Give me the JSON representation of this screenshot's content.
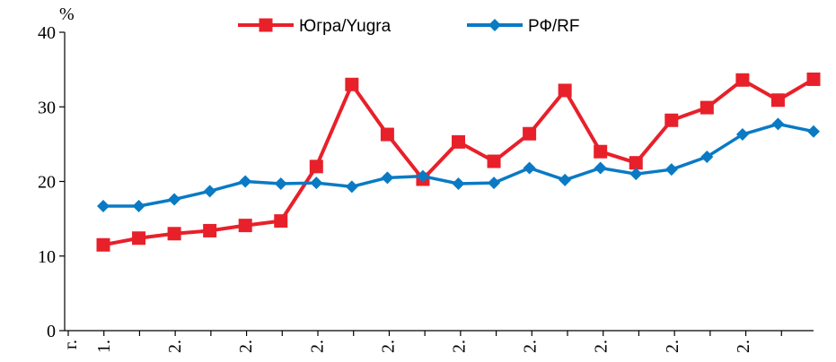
{
  "chart_data": {
    "type": "line",
    "unit_label": "%",
    "ylim": [
      0,
      40
    ],
    "y_ticks": [
      "0",
      "10",
      "20",
      "30",
      "40"
    ],
    "x_tick_labels": [
      "г.",
      "1.",
      "2.",
      "2.",
      "2.",
      "2.",
      "2.",
      "2.",
      "2.",
      "2.",
      "2."
    ],
    "grid": false,
    "legend_position": "top-center",
    "series": [
      {
        "name": "Югра/Yugra",
        "color": "#e8202a",
        "marker": "square",
        "values": [
          11.5,
          12.4,
          13.0,
          13.4,
          14.1,
          14.7,
          22.0,
          33.0,
          26.3,
          20.3,
          25.3,
          22.7,
          26.4,
          32.2,
          24.0,
          22.5,
          28.2,
          29.9,
          33.6,
          30.9,
          33.7
        ]
      },
      {
        "name": "РФ/RF",
        "color": "#0a7ac4",
        "marker": "diamond",
        "values": [
          16.7,
          16.7,
          17.6,
          18.7,
          20.0,
          19.7,
          19.8,
          19.3,
          20.5,
          20.7,
          19.7,
          19.8,
          21.8,
          20.2,
          21.8,
          21.0,
          21.6,
          23.3,
          26.3,
          27.7,
          26.7
        ]
      }
    ]
  }
}
